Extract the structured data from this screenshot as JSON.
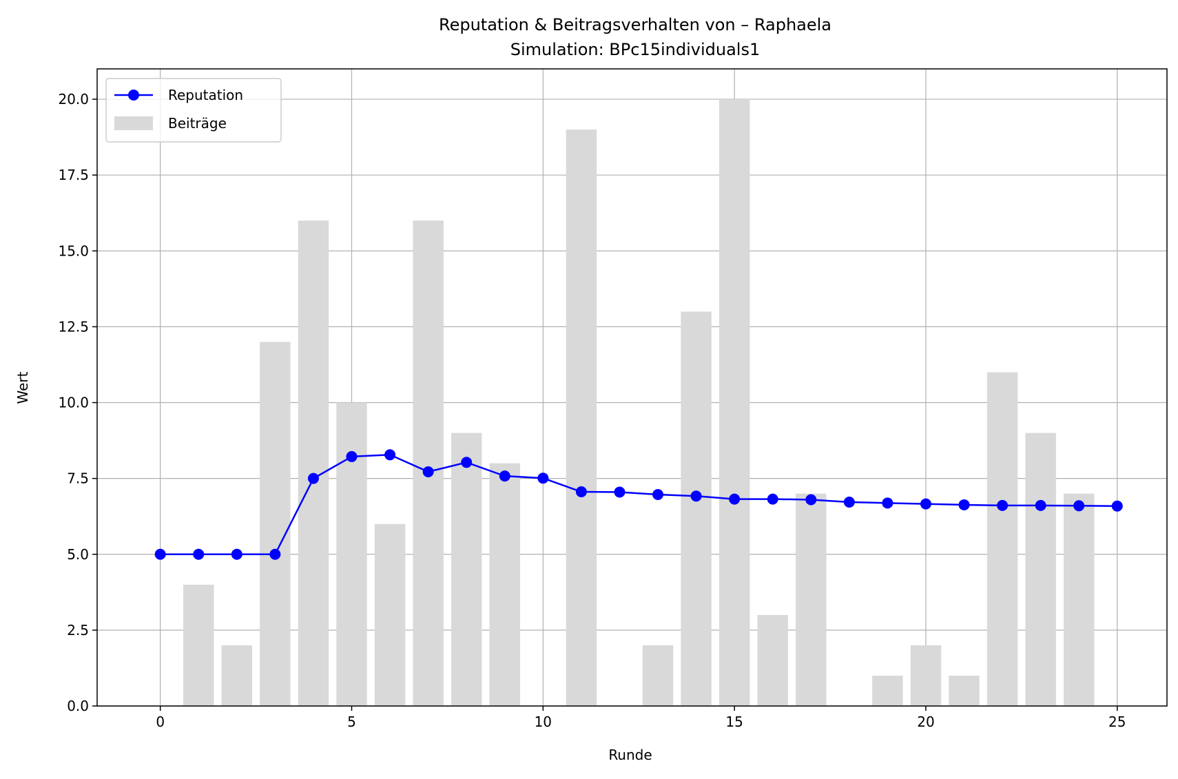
{
  "chart_data": {
    "type": "bar",
    "title": "Reputation & Beitragsverhalten von – Raphaela",
    "subtitle": "Simulation: BPc15individuals1",
    "xlabel": "Runde",
    "ylabel": "Wert",
    "xlim": [
      -1.65,
      26.3
    ],
    "ylim": [
      0,
      21
    ],
    "xticks": [
      0,
      5,
      10,
      15,
      20,
      25
    ],
    "xtick_labels": [
      "0",
      "5",
      "10",
      "15",
      "20",
      "25"
    ],
    "yticks": [
      0,
      2.5,
      5,
      7.5,
      10,
      12.5,
      15,
      17.5,
      20
    ],
    "ytick_labels": [
      "0.0",
      "2.5",
      "5.0",
      "7.5",
      "10.0",
      "12.5",
      "15.0",
      "17.5",
      "20.0"
    ],
    "grid": true,
    "legend_position": "top-left",
    "series": [
      {
        "name": "Reputation",
        "kind": "line",
        "color": "#0000ff",
        "x": [
          0,
          1,
          2,
          3,
          4,
          5,
          6,
          7,
          8,
          9,
          10,
          11,
          12,
          13,
          14,
          15,
          16,
          17,
          18,
          19,
          20,
          21,
          22,
          23,
          24,
          25
        ],
        "values": [
          5.0,
          5.0,
          5.0,
          5.0,
          7.5,
          8.22,
          8.28,
          7.72,
          8.03,
          7.58,
          7.51,
          7.06,
          7.05,
          6.97,
          6.92,
          6.82,
          6.82,
          6.8,
          6.72,
          6.69,
          6.66,
          6.63,
          6.61,
          6.61,
          6.6,
          6.59
        ]
      },
      {
        "name": "Beiträge",
        "kind": "bar",
        "color": "#d9d9d9",
        "x": [
          1,
          2,
          3,
          4,
          5,
          6,
          7,
          8,
          9,
          11,
          13,
          14,
          15,
          16,
          17,
          19,
          20,
          21,
          22,
          23,
          24
        ],
        "values": [
          4,
          2,
          12,
          16,
          10,
          6,
          16,
          9,
          8,
          19,
          2,
          13,
          20,
          3,
          7,
          1,
          2,
          1,
          11,
          9,
          7
        ]
      }
    ]
  }
}
